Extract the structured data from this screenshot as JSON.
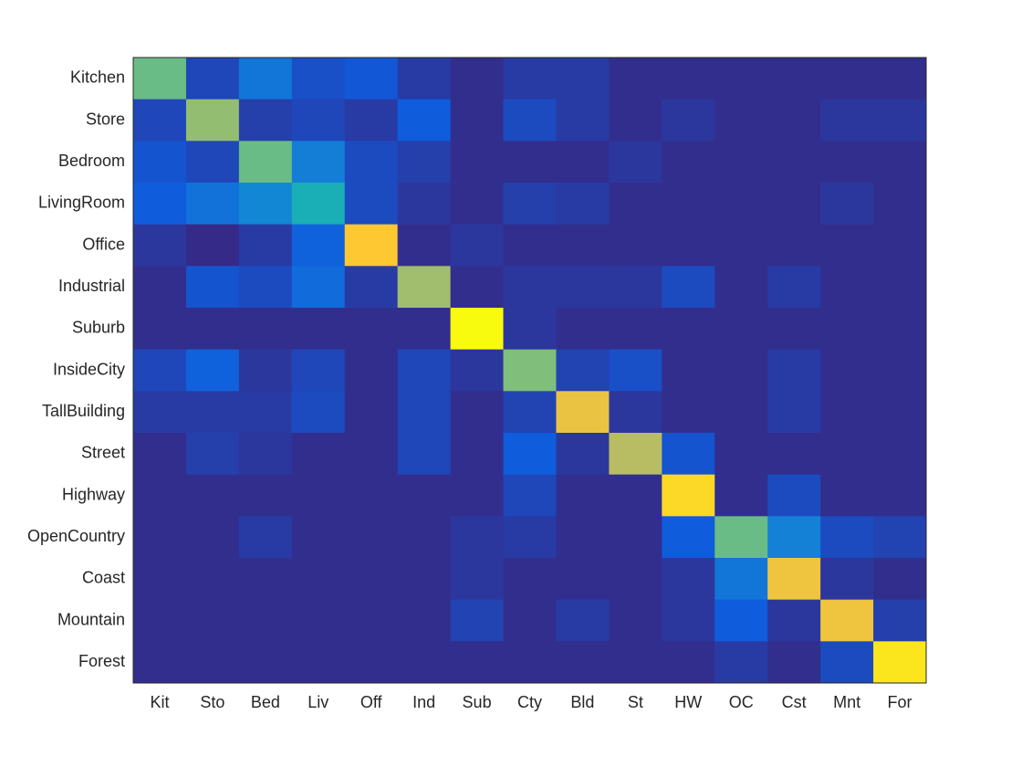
{
  "chart_data": {
    "type": "heatmap",
    "x_categories": [
      "Kit",
      "Sto",
      "Bed",
      "Liv",
      "Off",
      "Ind",
      "Sub",
      "Cty",
      "Bld",
      "St",
      "HW",
      "OC",
      "Cst",
      "Mnt",
      "For"
    ],
    "y_categories": [
      "Kitchen",
      "Store",
      "Bedroom",
      "LivingRoom",
      "Office",
      "Industrial",
      "Suburb",
      "InsideCity",
      "TallBuilding",
      "Street",
      "Highway",
      "OpenCountry",
      "Coast",
      "Mountain",
      "Forest"
    ],
    "values": [
      [
        0.56,
        0.07,
        0.2,
        0.09,
        0.11,
        0.04,
        0.01,
        0.04,
        0.04,
        0.01,
        0.01,
        0.01,
        0.01,
        0.01,
        0.01
      ],
      [
        0.07,
        0.62,
        0.05,
        0.07,
        0.04,
        0.12,
        0.01,
        0.08,
        0.04,
        0.01,
        0.03,
        0.01,
        0.01,
        0.03,
        0.03
      ],
      [
        0.1,
        0.07,
        0.56,
        0.23,
        0.08,
        0.05,
        0.01,
        0.01,
        0.01,
        0.03,
        0.01,
        0.01,
        0.01,
        0.01,
        0.01
      ],
      [
        0.12,
        0.19,
        0.26,
        0.42,
        0.08,
        0.03,
        0.01,
        0.05,
        0.04,
        0.01,
        0.01,
        0.01,
        0.01,
        0.03,
        0.01
      ],
      [
        0.03,
        0,
        0.04,
        0.14,
        0.84,
        0.01,
        0.03,
        0.01,
        0.01,
        0.01,
        0.01,
        0.01,
        0.01,
        0.01,
        0.01
      ],
      [
        0.01,
        0.1,
        0.08,
        0.17,
        0.04,
        0.64,
        0.01,
        0.03,
        0.03,
        0.03,
        0.08,
        0.01,
        0.04,
        0.01,
        0.01
      ],
      [
        0.01,
        0.01,
        0.01,
        0.01,
        0.01,
        0.01,
        0.96,
        0.03,
        0.01,
        0.01,
        0.01,
        0.01,
        0.01,
        0.01,
        0.01
      ],
      [
        0.07,
        0.14,
        0.03,
        0.07,
        0.01,
        0.07,
        0.03,
        0.59,
        0.06,
        0.09,
        0.01,
        0.01,
        0.04,
        0.01,
        0.01
      ],
      [
        0.04,
        0.04,
        0.04,
        0.08,
        0.01,
        0.07,
        0.01,
        0.06,
        0.79,
        0.03,
        0.01,
        0.01,
        0.04,
        0.01,
        0.01
      ],
      [
        0.01,
        0.05,
        0.03,
        0.01,
        0.01,
        0.07,
        0.01,
        0.12,
        0.03,
        0.68,
        0.1,
        0.01,
        0.01,
        0.01,
        0.01
      ],
      [
        0.01,
        0.01,
        0.01,
        0.01,
        0.01,
        0.01,
        0.01,
        0.07,
        0.01,
        0.01,
        0.88,
        0.01,
        0.08,
        0.01,
        0.01
      ],
      [
        0.01,
        0.01,
        0.04,
        0.01,
        0.01,
        0.01,
        0.03,
        0.04,
        0.01,
        0.01,
        0.12,
        0.56,
        0.24,
        0.08,
        0.06
      ],
      [
        0.01,
        0.01,
        0.01,
        0.01,
        0.01,
        0.01,
        0.03,
        0.01,
        0.01,
        0.01,
        0.03,
        0.2,
        0.8,
        0.03,
        0.01
      ],
      [
        0.01,
        0.01,
        0.01,
        0.01,
        0.01,
        0.01,
        0.06,
        0.01,
        0.04,
        0.01,
        0.03,
        0.12,
        0.03,
        0.8,
        0.05
      ],
      [
        0.01,
        0.01,
        0.01,
        0.01,
        0.01,
        0.01,
        0.01,
        0.01,
        0.01,
        0.01,
        0.01,
        0.04,
        0.01,
        0.08,
        0.91
      ]
    ],
    "colormap": [
      "#352a87",
      "#0f5cdd",
      "#1481d6",
      "#06a4ca",
      "#2eb7a4",
      "#87bf77",
      "#d1bb59",
      "#fec832",
      "#f9fb0e"
    ]
  }
}
